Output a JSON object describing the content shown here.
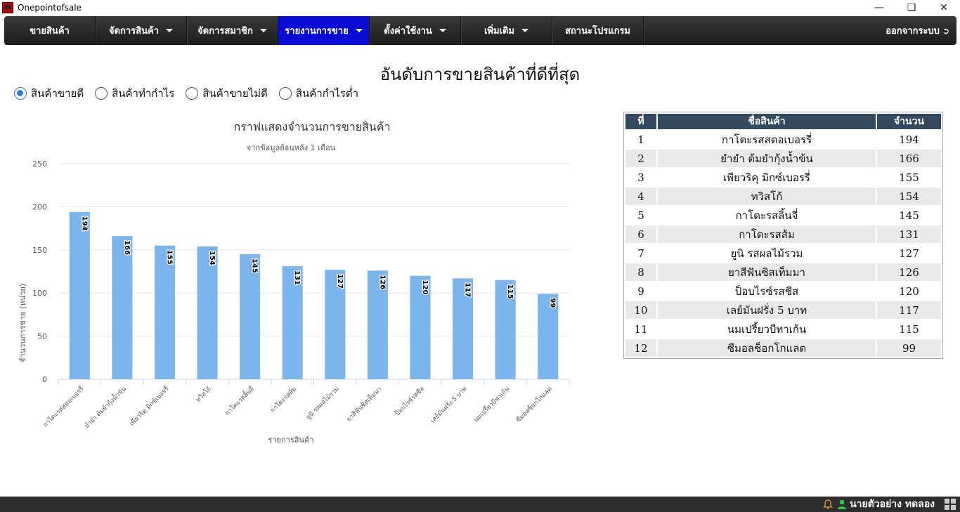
{
  "window": {
    "title": "Onepointofsale"
  },
  "nav": {
    "items": [
      {
        "label": "ขายสินค้า",
        "dropdown": false,
        "width": 130
      },
      {
        "label": "จัดการสินค้า",
        "dropdown": true,
        "width": 130
      },
      {
        "label": "จัดการสมาชิก",
        "dropdown": true,
        "width": 130
      },
      {
        "label": "รายงานการขาย",
        "dropdown": true,
        "width": 130,
        "active": true
      },
      {
        "label": "ตั้งค่าใช้งาน",
        "dropdown": true,
        "width": 130
      },
      {
        "label": "เพิ่มเติม",
        "dropdown": true,
        "width": 130
      },
      {
        "label": "สถานะโปรแกรม",
        "dropdown": false,
        "width": 130
      }
    ],
    "logout_label": "ออกจากระบบ"
  },
  "page": {
    "title": "อันดับการขายสินค้าที่ดีที่สุด",
    "radios": [
      {
        "label": "สินค้าขายดี",
        "checked": true
      },
      {
        "label": "สินค้าทำกำไร",
        "checked": false
      },
      {
        "label": "สินค้าขายไม่ดี",
        "checked": false
      },
      {
        "label": "สินค้ากำไรต่ำ",
        "checked": false
      }
    ]
  },
  "chart_data": {
    "type": "bar",
    "title": "กราฟแสดงจำนวนการขายสินค้า",
    "subtitle": "จากข้อมูลย้อนหลัง 1 เดือน",
    "xlabel": "รายการสินค้า",
    "ylabel": "จำนวนการขาย (หน่วย)",
    "ylim": [
      0,
      250
    ],
    "yticks": [
      0,
      50,
      100,
      150,
      200,
      250
    ],
    "grid": true,
    "bar_color": "#7cb5ec",
    "categories": [
      "กาโตะรสสตอเบอรรี่",
      "ยำยำ ต้มยำกุ้งน้ำข้น",
      "เพียวริคุ มิกซ์เบอรรี่",
      "ทวิสโก้",
      "กาโตะรสลิ้นจี่",
      "กาโตะรสส้ม",
      "ยูนิ รสผลไม้รวม",
      "ยาสีฟันซิสเท็มมา",
      "ป็อบไรซ์รสชีส",
      "เลย์มันฝรั่ง 5 บาท",
      "นมเปรี้ยวบีทาเก้น",
      "ซีมอลช็อกโกแลต"
    ],
    "values": [
      194,
      166,
      155,
      154,
      145,
      131,
      127,
      126,
      120,
      117,
      115,
      99
    ]
  },
  "table": {
    "headers": [
      "ที่",
      "ชื่อสินค้า",
      "จำนวน"
    ],
    "rows": [
      [
        "1",
        "กาโตะรสสตอเบอรรี่",
        "194"
      ],
      [
        "2",
        "ยำยำ ต้มยำกุ้งน้ำข้น",
        "166"
      ],
      [
        "3",
        "เพียวริคุ มิกซ์เบอรรี่",
        "155"
      ],
      [
        "4",
        "ทวิสโก้",
        "154"
      ],
      [
        "5",
        "กาโตะรสลิ้นจี่",
        "145"
      ],
      [
        "6",
        "กาโตะรสส้ม",
        "131"
      ],
      [
        "7",
        "ยูนิ รสผลไม้รวม",
        "127"
      ],
      [
        "8",
        "ยาสีฟันซิสเท็มมา",
        "126"
      ],
      [
        "9",
        "ป็อบไรซ์รสชีส",
        "120"
      ],
      [
        "10",
        "เลย์มันฝรั่ง 5 บาท",
        "117"
      ],
      [
        "11",
        "นมเปรี้ยวบีทาเก้น",
        "115"
      ],
      [
        "12",
        "ซีมอลช็อกโกแลต",
        "99"
      ]
    ]
  },
  "status": {
    "user_name": "นายตัวอย่าง ทดลอง"
  }
}
